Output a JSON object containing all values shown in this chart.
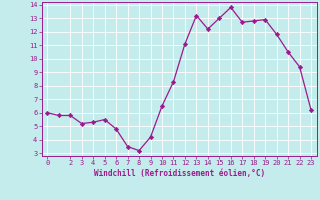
{
  "x": [
    0,
    1,
    2,
    3,
    4,
    5,
    6,
    7,
    8,
    9,
    10,
    11,
    12,
    13,
    14,
    15,
    16,
    17,
    18,
    19,
    20,
    21,
    22,
    23
  ],
  "y": [
    6.0,
    5.8,
    5.8,
    5.2,
    5.3,
    5.5,
    4.8,
    3.5,
    3.2,
    4.2,
    6.5,
    8.3,
    11.1,
    13.2,
    12.2,
    13.0,
    13.8,
    12.7,
    12.8,
    12.9,
    11.8,
    10.5,
    9.4,
    6.2
  ],
  "line_color": "#9b1b8e",
  "marker": "D",
  "marker_size": 2.2,
  "bg_color": "#c4ecec",
  "grid_color": "#ffffff",
  "xlabel": "Windchill (Refroidissement éolien,°C)",
  "xlabel_color": "#9b1b8e",
  "tick_color": "#9b1b8e",
  "ylim": [
    2.8,
    14.2
  ],
  "xlim": [
    -0.5,
    23.5
  ],
  "yticks": [
    3,
    4,
    5,
    6,
    7,
    8,
    9,
    10,
    11,
    12,
    13,
    14
  ],
  "xticks": [
    0,
    2,
    3,
    4,
    5,
    6,
    7,
    8,
    9,
    10,
    11,
    12,
    13,
    14,
    15,
    16,
    17,
    18,
    19,
    20,
    21,
    22,
    23
  ],
  "spine_color": "#9b1b8e"
}
